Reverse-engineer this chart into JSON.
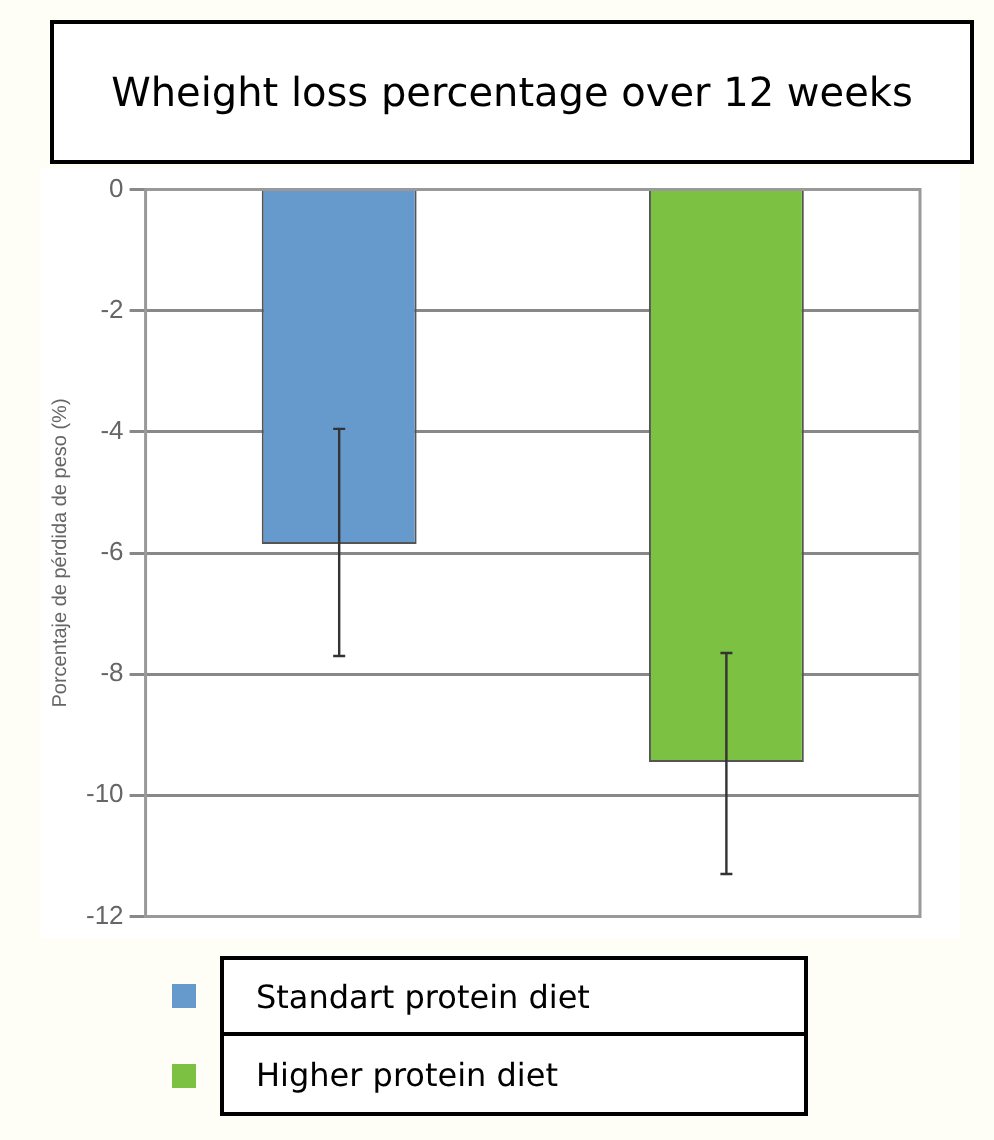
{
  "chart_data": {
    "type": "bar",
    "title": "Wheight loss percentage over 12 weeks",
    "ylabel": "Porcentaje de pérdida de peso (%)",
    "categories": [
      null,
      null
    ],
    "series": [
      {
        "name": "Standart protein diet",
        "color": "#6699cc",
        "values": [
          -5.85,
          null
        ],
        "errors": [
          [
            -7.7,
            -3.95
          ],
          null
        ]
      },
      {
        "name": "Higher protein diet",
        "color": "#7dc142",
        "values": [
          null,
          -9.45
        ],
        "errors": [
          null,
          [
            -11.3,
            -7.65
          ]
        ]
      }
    ],
    "ylim": [
      -12,
      0
    ],
    "yticks": [
      -12,
      -10,
      -8,
      -6,
      -4,
      -2,
      0
    ],
    "grid": "y",
    "legend": "bottom left"
  }
}
